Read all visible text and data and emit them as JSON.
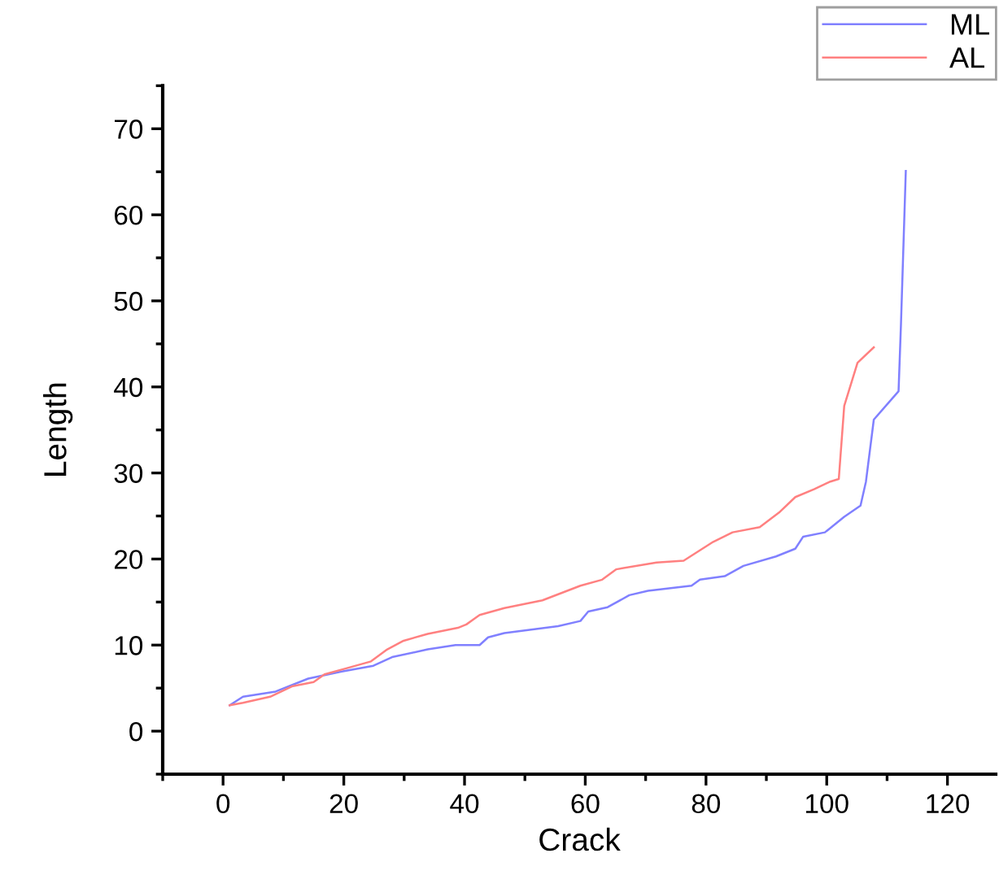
{
  "chart_data": {
    "type": "line",
    "xlabel": "Crack",
    "ylabel": "Length",
    "xlim": [
      -10,
      128
    ],
    "xticks": [
      0,
      20,
      40,
      60,
      80,
      100,
      120
    ],
    "ylim": [
      -5,
      75
    ],
    "yticks": [
      0,
      10,
      20,
      30,
      40,
      50,
      60,
      70
    ],
    "grid": false,
    "legend": "top right",
    "line_style": "solid",
    "marker": "none",
    "series": [
      {
        "name": "ML",
        "color": "#8080ff",
        "x": [
          1.1,
          3.3,
          8.7,
          14.1,
          19.5,
          24.9,
          28,
          33.9,
          38.5,
          42.5,
          43.9,
          46.6,
          55.5,
          59.2,
          60.5,
          63.7,
          67.3,
          70.4,
          77.6,
          79,
          83.1,
          86.2,
          91.6,
          94.8,
          96.1,
          99.7,
          102.9,
          105.6,
          106.5,
          107.8,
          111.9,
          112.3,
          113.1
        ],
        "values": [
          3.0,
          4.0,
          4.6,
          6.1,
          6.9,
          7.6,
          8.6,
          9.5,
          10,
          10,
          10.9,
          11.4,
          12.2,
          12.8,
          13.9,
          14.4,
          15.8,
          16.3,
          16.9,
          17.6,
          18,
          19.2,
          20.3,
          21.2,
          22.6,
          23.1,
          24.9,
          26.2,
          29.0,
          36.2,
          39.5,
          47.3,
          65.1
        ]
      },
      {
        "name": "AL",
        "color": "#ff8080",
        "x": [
          1.1,
          3.3,
          7.8,
          11.4,
          15,
          16.8,
          20.4,
          24.5,
          27.2,
          29.9,
          33.9,
          38.9,
          40.3,
          42.5,
          46.6,
          52.9,
          59.2,
          62.8,
          65.1,
          71.8,
          76.3,
          81.2,
          84.4,
          88.9,
          92.1,
          94.8,
          97.9,
          100.6,
          102,
          102.9,
          105.1,
          107.8
        ],
        "values": [
          3.0,
          3.3,
          4.0,
          5.2,
          5.7,
          6.6,
          7.3,
          8.1,
          9.5,
          10.5,
          11.3,
          12.0,
          12.4,
          13.5,
          14.3,
          15.2,
          16.9,
          17.6,
          18.8,
          19.6,
          19.8,
          22,
          23.1,
          23.7,
          25.4,
          27.2,
          28.1,
          29,
          29.3,
          37.8,
          42.8,
          44.6
        ]
      }
    ]
  }
}
